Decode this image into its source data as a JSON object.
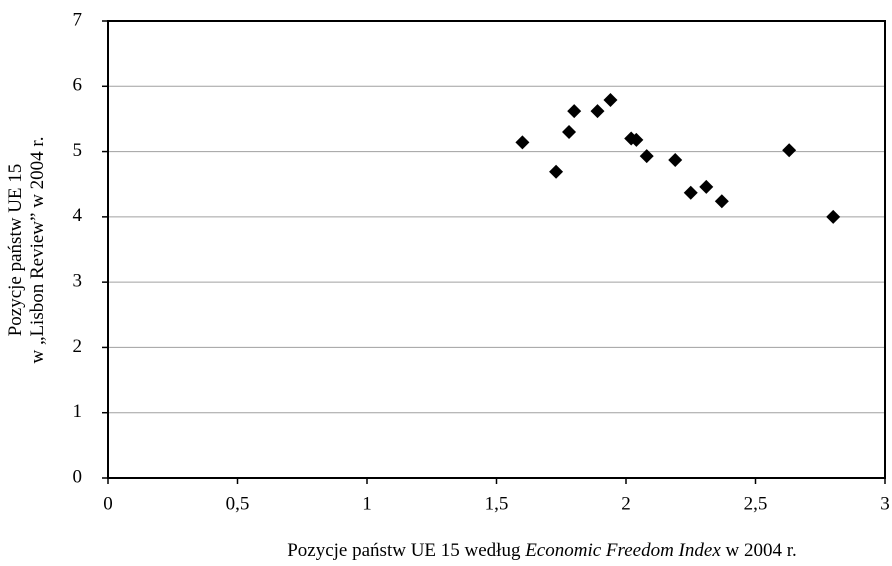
{
  "chart_data": {
    "type": "scatter",
    "x_label": [
      "Pozycje państw UE 15 według ",
      "Economic Freedom Index",
      " w 2004 r."
    ],
    "y_label": [
      "Pozycje państw UE 15",
      "w „Lisbon Review” w 2004 r."
    ],
    "x": [
      1.6,
      1.73,
      1.78,
      1.8,
      1.89,
      1.94,
      2.02,
      2.04,
      2.08,
      2.19,
      2.25,
      2.31,
      2.37,
      2.63,
      2.8
    ],
    "y": [
      5.14,
      4.69,
      5.3,
      5.62,
      5.62,
      5.79,
      5.2,
      5.18,
      4.93,
      4.87,
      4.37,
      4.46,
      4.24,
      5.02,
      4.0
    ],
    "color": "#000000",
    "xlim": [
      0,
      3
    ],
    "xticks": [
      0,
      {
        "value": 0.5,
        "label": "0,5"
      },
      1,
      {
        "value": 1.5,
        "label": "1,5"
      },
      2,
      {
        "value": 2.5,
        "label": "2,5"
      },
      3
    ],
    "ylim": [
      0,
      7
    ],
    "yticks": [
      0,
      1,
      2,
      3,
      4,
      5,
      6,
      7
    ],
    "grid": true
  }
}
